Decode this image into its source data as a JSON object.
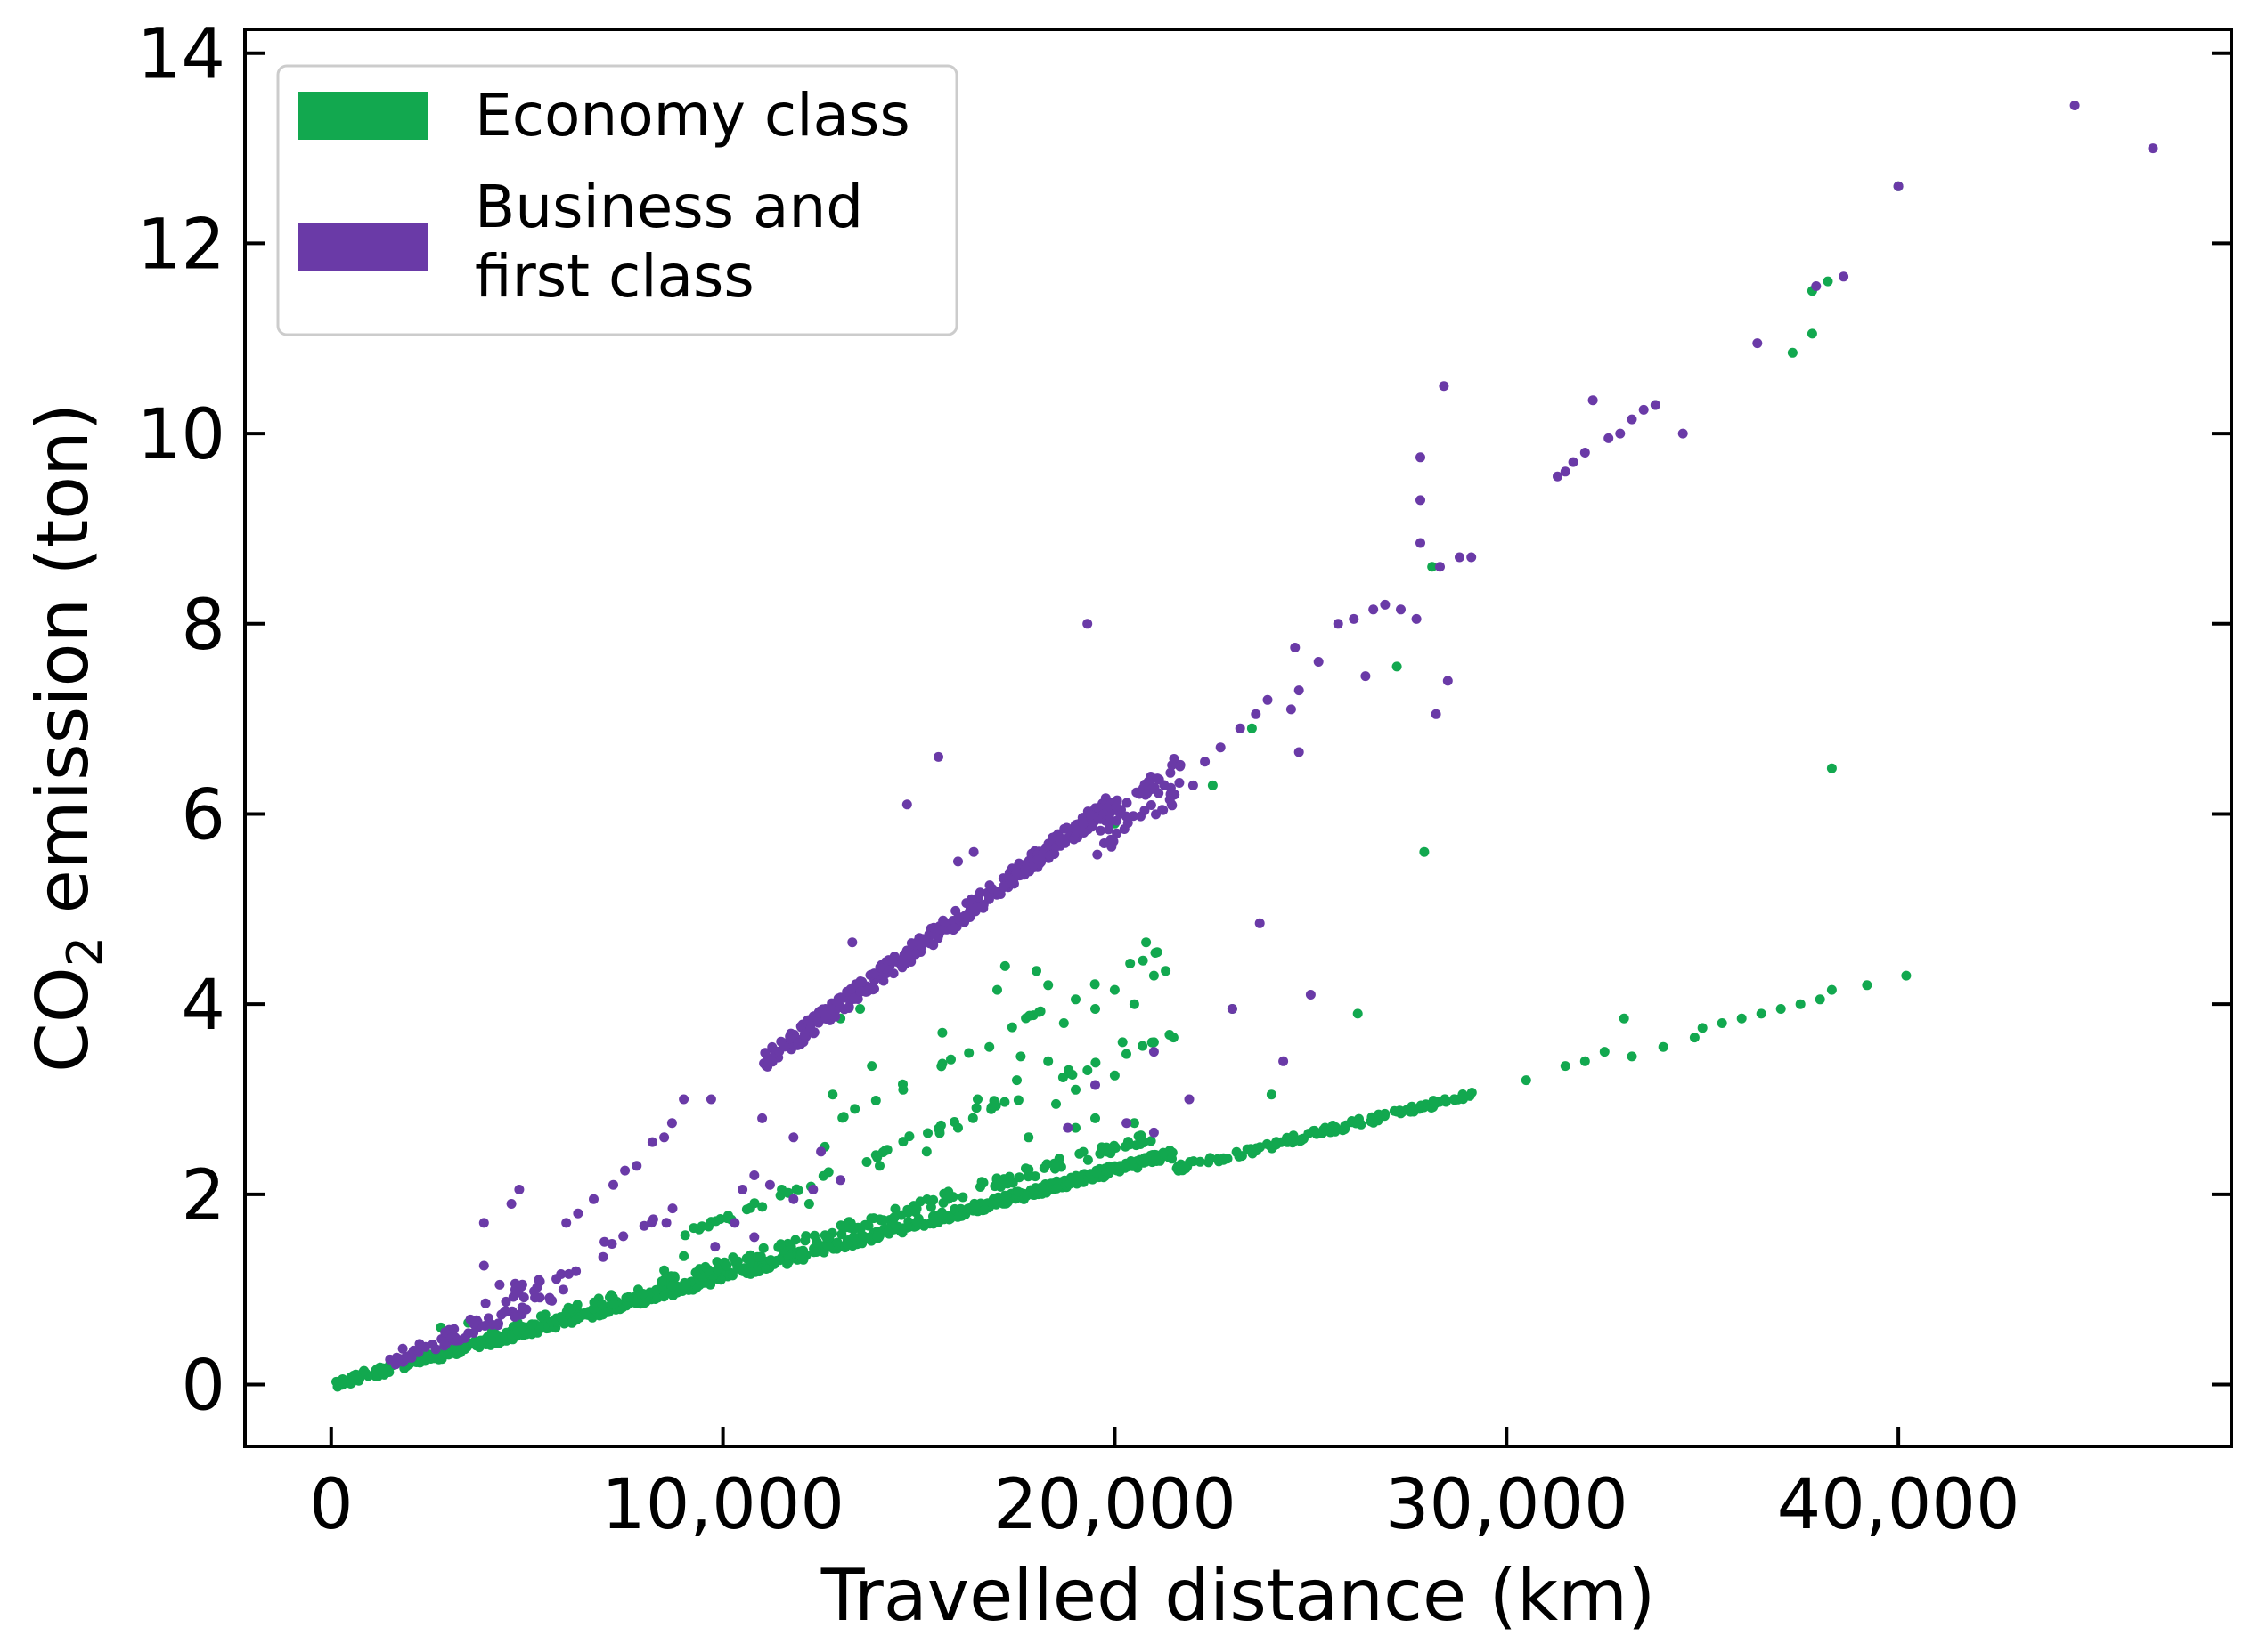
{
  "chart_data": {
    "type": "scatter",
    "xlabel": "Travelled distance (km)",
    "ylabel_parts": [
      "CO",
      "2",
      " emission (ton)"
    ],
    "xlim": [
      -2200,
      48500
    ],
    "ylim": [
      -0.65,
      14.25
    ],
    "x_ticks": [
      0,
      10000,
      20000,
      30000,
      40000
    ],
    "x_tick_labels": [
      "0",
      "10,000",
      "20,000",
      "30,000",
      "40,000"
    ],
    "y_ticks": [
      0,
      2,
      4,
      6,
      8,
      10,
      12,
      14
    ],
    "y_tick_labels": [
      "0",
      "2",
      "4",
      "6",
      "8",
      "10",
      "12",
      "14"
    ],
    "grid": false,
    "legend": "top-left",
    "legend_entries": [
      "Economy class",
      "Business and first class"
    ],
    "legend_lines": [
      [
        "Economy class"
      ],
      [
        "Business and",
        "first class"
      ]
    ],
    "colors": {
      "economy": "#12a84f",
      "business": "#6a3aa7"
    },
    "series": [
      {
        "name": "Economy class",
        "color": "#12a84f",
        "bands": [
          {
            "x_start": 100,
            "x_end": 21500,
            "slope": 0.000113,
            "jitter": 0.05,
            "n": 700
          },
          {
            "x_start": 21500,
            "x_end": 29200,
            "slope": 0.000105,
            "jitter": 0.04,
            "n": 120
          },
          {
            "x_start": 4000,
            "x_end": 21000,
            "slope": 0.000125,
            "jitter": 0.06,
            "n": 180
          },
          {
            "x_start": 9000,
            "x_end": 19000,
            "slope": 0.000175,
            "jitter": 0.03,
            "n": 25
          },
          {
            "x_start": 10000,
            "x_end": 21500,
            "slope": 0.000172,
            "jitter": 0.03,
            "n": 30
          },
          {
            "x_start": 13000,
            "x_end": 21500,
            "slope": 0.000216,
            "jitter": 0.03,
            "n": 20
          }
        ],
        "points": [
          [
            38300,
            4.15
          ],
          [
            38000,
            4.05
          ],
          [
            37500,
            4.0
          ],
          [
            37000,
            3.95
          ],
          [
            36500,
            3.9
          ],
          [
            35500,
            3.8
          ],
          [
            34800,
            3.65
          ],
          [
            34000,
            3.55
          ],
          [
            33200,
            3.45
          ],
          [
            32500,
            3.5
          ],
          [
            32000,
            3.4
          ],
          [
            31500,
            3.35
          ],
          [
            30500,
            3.2
          ],
          [
            40200,
            4.3
          ],
          [
            39200,
            4.2
          ],
          [
            33000,
            3.85
          ],
          [
            35000,
            3.75
          ],
          [
            36000,
            3.85
          ],
          [
            40000,
            12.6
          ],
          [
            38200,
            11.6
          ],
          [
            37800,
            11.5
          ],
          [
            37800,
            11.05
          ],
          [
            37300,
            10.85
          ],
          [
            33800,
            10.3
          ],
          [
            28100,
            8.6
          ],
          [
            27200,
            7.55
          ],
          [
            27900,
            5.6
          ],
          [
            38300,
            6.48
          ],
          [
            23500,
            6.9
          ],
          [
            22500,
            6.3
          ],
          [
            20000,
            5.9
          ],
          [
            20800,
            4.65
          ],
          [
            21300,
            4.35
          ],
          [
            21500,
            3.65
          ],
          [
            21000,
            3.6
          ],
          [
            26200,
            3.9
          ],
          [
            23000,
            3.95
          ],
          [
            24000,
            3.05
          ],
          [
            19500,
            2.8
          ],
          [
            19000,
            2.7
          ],
          [
            20500,
            2.75
          ],
          [
            18500,
            2.95
          ],
          [
            17500,
            3.2
          ],
          [
            16500,
            3.0
          ],
          [
            14600,
            3.1
          ],
          [
            12600,
            2.5
          ],
          [
            11500,
            2.05
          ],
          [
            17800,
            2.6
          ],
          [
            15200,
            2.45
          ],
          [
            14000,
            2.3
          ],
          [
            12200,
            1.9
          ],
          [
            20000,
            3.25
          ],
          [
            19000,
            3.1
          ],
          [
            18300,
            3.4
          ],
          [
            16800,
            3.55
          ],
          [
            15600,
            3.7
          ],
          [
            13800,
            3.35
          ],
          [
            12800,
            3.05
          ],
          [
            20200,
            3.6
          ],
          [
            18700,
            3.8
          ],
          [
            17600,
            3.45
          ],
          [
            16000,
            2.7
          ],
          [
            21000,
            4.3
          ],
          [
            20000,
            4.15
          ],
          [
            19000,
            4.05
          ],
          [
            18300,
            4.2
          ],
          [
            17000,
            4.15
          ],
          [
            20500,
            4.0
          ],
          [
            19500,
            3.95
          ],
          [
            18000,
            4.35
          ],
          [
            17200,
            4.4
          ],
          [
            13500,
            3.95
          ],
          [
            13000,
            3.85
          ],
          [
            9000,
            1.35
          ],
          [
            8500,
            1.2
          ],
          [
            3500,
            0.65
          ],
          [
            2800,
            0.6
          ]
        ]
      },
      {
        "name": "Business and first class",
        "color": "#6a3aa7",
        "bands": [
          {
            "x_start": 11000,
            "x_end": 20000,
            "slope": 0.000307,
            "jitter": 0.1,
            "n": 340
          },
          {
            "x_start": 19500,
            "x_end": 21700,
            "slope": 0.000295,
            "jitter": 0.25,
            "n": 60
          },
          {
            "x_start": 1500,
            "x_end": 6000,
            "slope": 0.000165,
            "jitter": 0.08,
            "n": 60
          },
          {
            "x_start": 3500,
            "x_end": 9000,
            "slope": 0.000205,
            "jitter": 0.1,
            "n": 25
          }
        ],
        "points": [
          [
            44500,
            13.45
          ],
          [
            46500,
            13.0
          ],
          [
            40000,
            12.6
          ],
          [
            38600,
            11.65
          ],
          [
            37900,
            11.55
          ],
          [
            36400,
            10.95
          ],
          [
            34500,
            10.0
          ],
          [
            33800,
            10.3
          ],
          [
            33500,
            10.25
          ],
          [
            33200,
            10.15
          ],
          [
            32900,
            10.0
          ],
          [
            32600,
            9.95
          ],
          [
            32200,
            10.35
          ],
          [
            32000,
            9.8
          ],
          [
            31700,
            9.7
          ],
          [
            31500,
            9.6
          ],
          [
            31300,
            9.55
          ],
          [
            28400,
            10.5
          ],
          [
            27800,
            9.75
          ],
          [
            27800,
            9.3
          ],
          [
            27800,
            8.85
          ],
          [
            28800,
            8.7
          ],
          [
            29100,
            8.7
          ],
          [
            28300,
            8.6
          ],
          [
            27700,
            8.05
          ],
          [
            27300,
            8.15
          ],
          [
            26900,
            8.2
          ],
          [
            26600,
            8.15
          ],
          [
            26100,
            8.05
          ],
          [
            25700,
            8.0
          ],
          [
            24600,
            7.75
          ],
          [
            25200,
            7.6
          ],
          [
            26400,
            7.45
          ],
          [
            28500,
            7.4
          ],
          [
            28200,
            7.05
          ],
          [
            24700,
            7.3
          ],
          [
            23900,
            7.2
          ],
          [
            23600,
            7.05
          ],
          [
            23200,
            6.9
          ],
          [
            24500,
            7.1
          ],
          [
            22700,
            6.7
          ],
          [
            22300,
            6.55
          ],
          [
            22000,
            6.3
          ],
          [
            21500,
            6.2
          ],
          [
            24700,
            6.65
          ],
          [
            19300,
            8.0
          ],
          [
            15500,
            6.6
          ],
          [
            14700,
            6.1
          ],
          [
            13300,
            4.65
          ],
          [
            23700,
            4.85
          ],
          [
            25000,
            4.1
          ],
          [
            23000,
            3.95
          ],
          [
            24300,
            3.4
          ],
          [
            21900,
            3.0
          ],
          [
            21000,
            3.5
          ],
          [
            16000,
            5.5
          ],
          [
            16400,
            5.6
          ],
          [
            9000,
            3.0
          ],
          [
            9700,
            3.0
          ],
          [
            8700,
            2.75
          ],
          [
            8500,
            2.6
          ],
          [
            8200,
            2.55
          ],
          [
            7800,
            2.3
          ],
          [
            7500,
            2.25
          ],
          [
            7200,
            2.1
          ],
          [
            6700,
            1.95
          ],
          [
            6300,
            1.8
          ],
          [
            6000,
            1.7
          ],
          [
            4800,
            2.05
          ],
          [
            4600,
            1.9
          ],
          [
            3900,
            1.7
          ],
          [
            3900,
            1.25
          ],
          [
            4300,
            1.05
          ],
          [
            4700,
            1.0
          ],
          [
            5300,
            1.1
          ],
          [
            11200,
            2.1
          ],
          [
            10800,
            2.2
          ],
          [
            10500,
            2.05
          ],
          [
            11800,
            1.95
          ],
          [
            12300,
            2.05
          ],
          [
            13000,
            2.15
          ],
          [
            11000,
            2.8
          ],
          [
            11800,
            2.6
          ],
          [
            12500,
            2.45
          ],
          [
            9800,
            1.45
          ],
          [
            10300,
            1.7
          ],
          [
            10800,
            1.55
          ],
          [
            20300,
            2.75
          ],
          [
            21000,
            2.65
          ],
          [
            18800,
            2.7
          ],
          [
            19500,
            3.15
          ]
        ]
      }
    ]
  }
}
